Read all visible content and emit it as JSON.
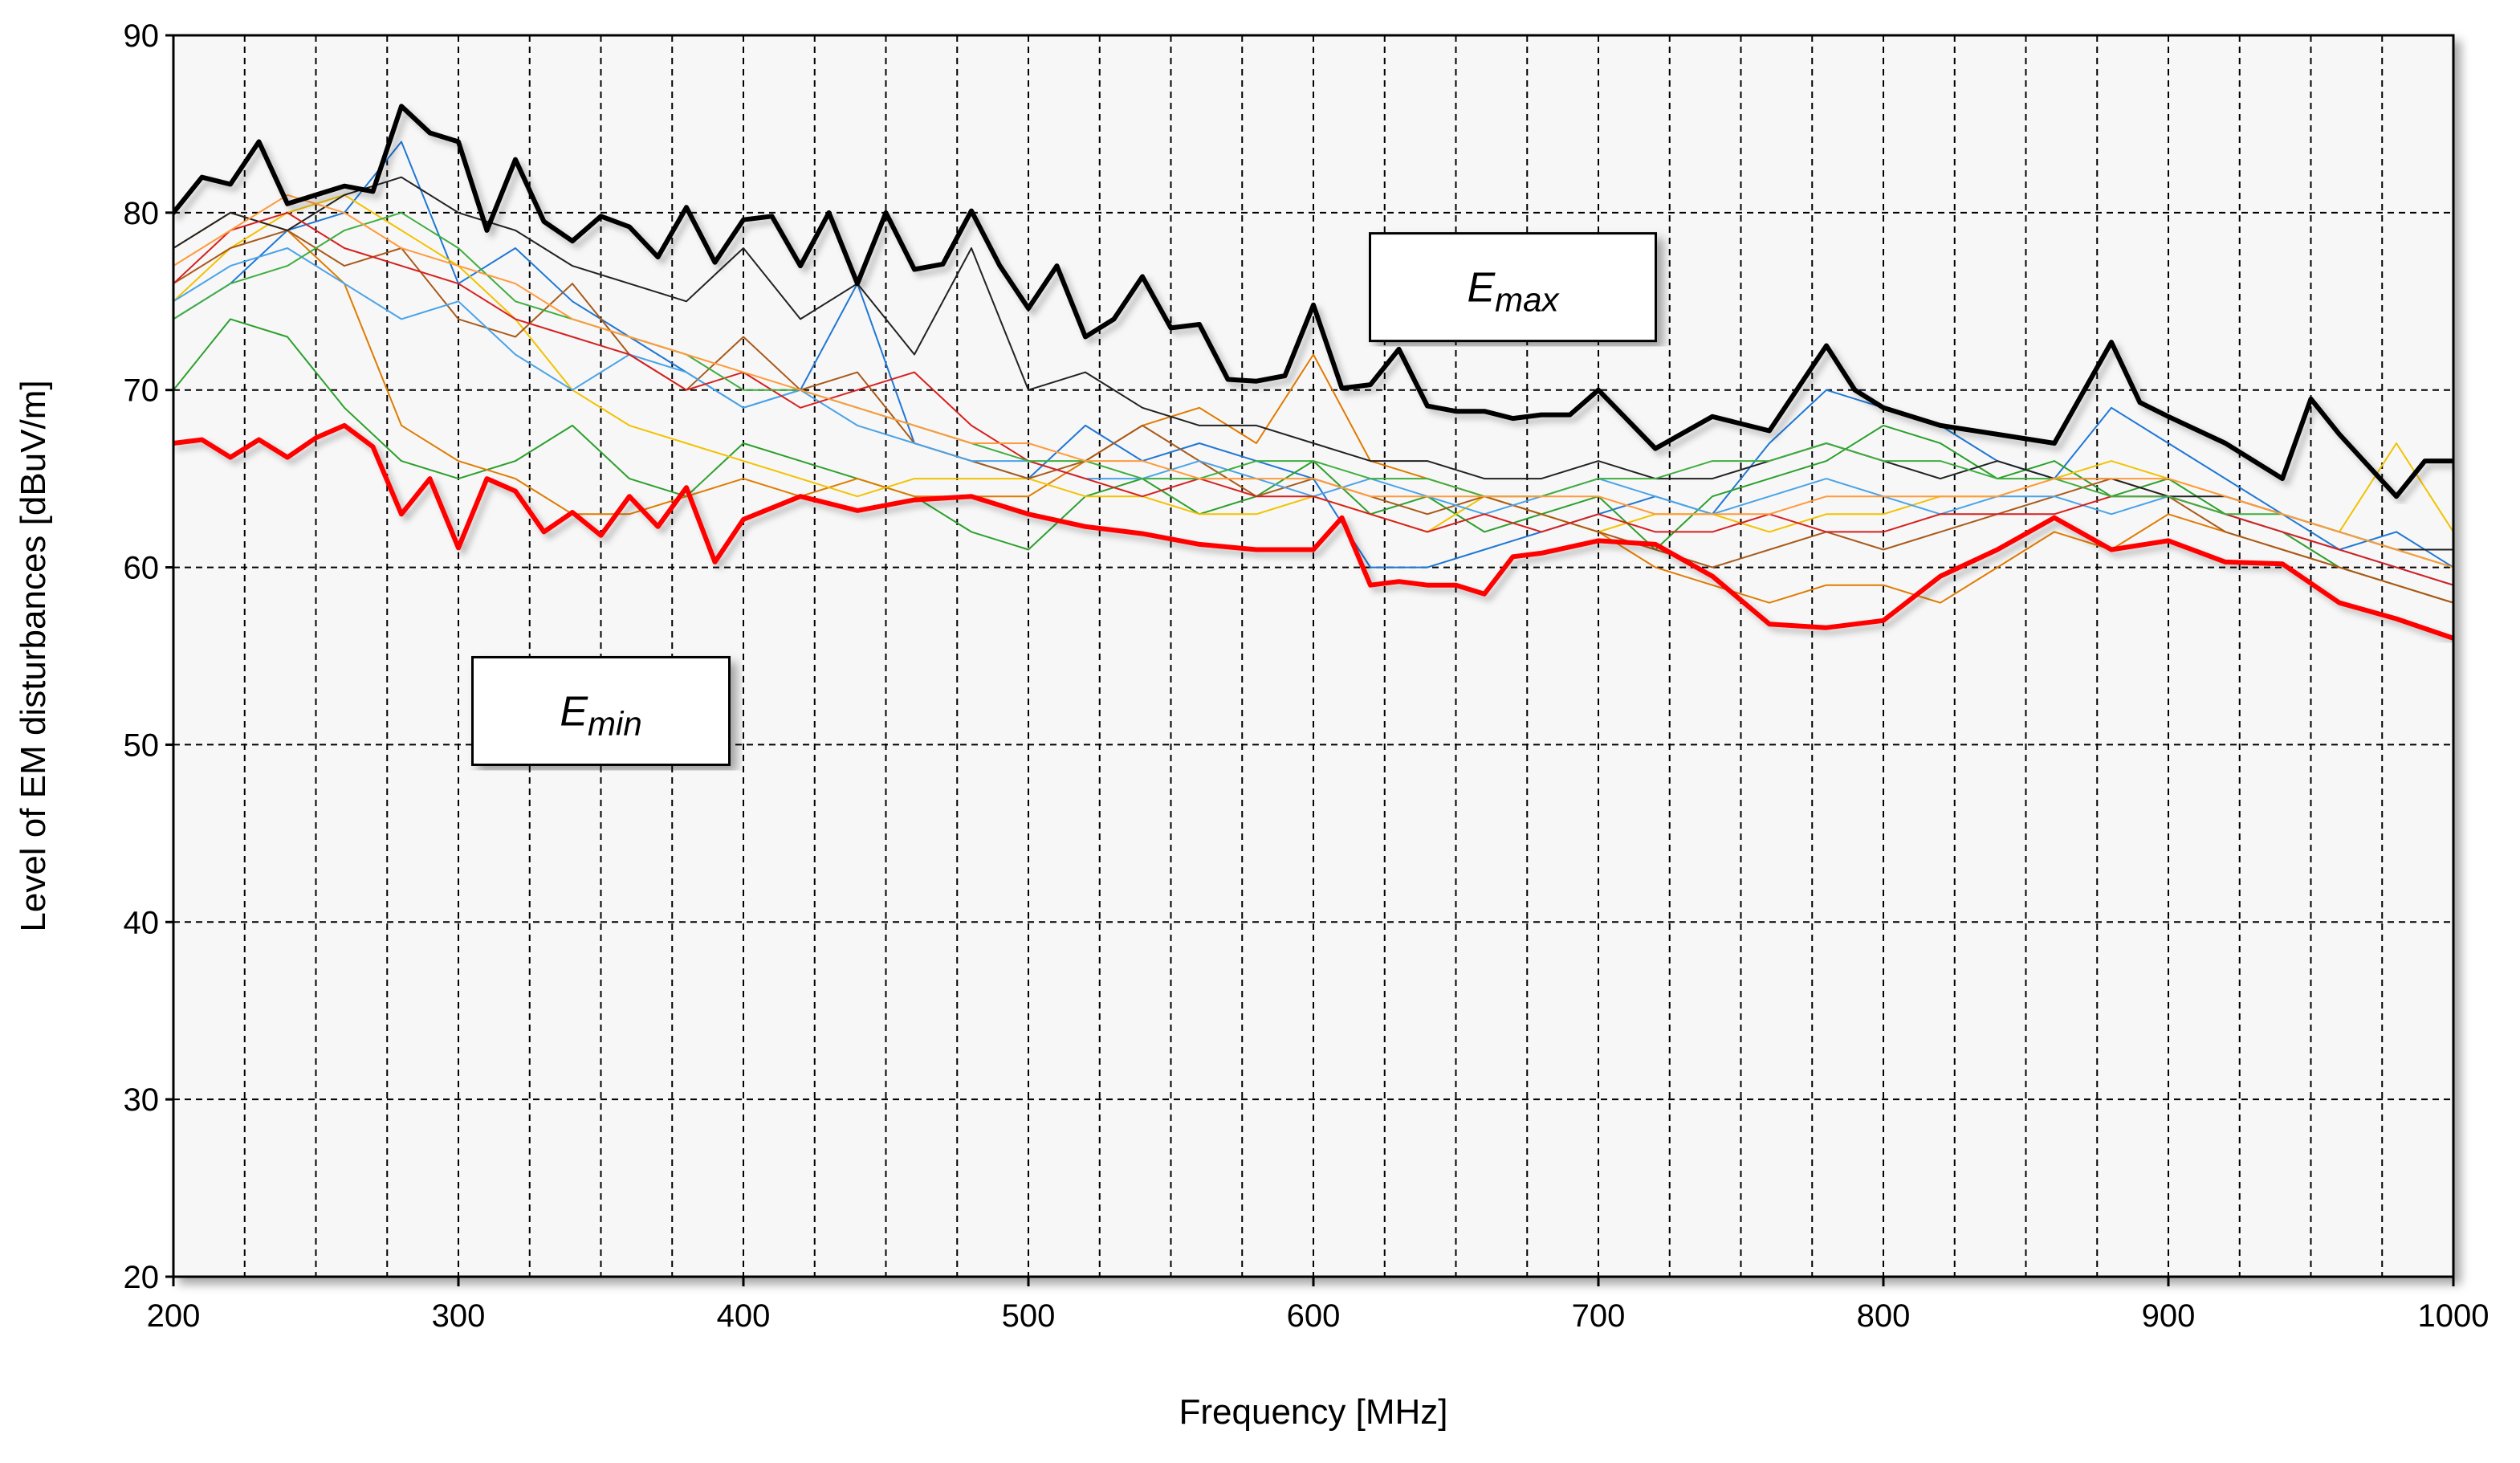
{
  "chart_data": {
    "type": "line",
    "title": "",
    "xlabel": "Frequency [MHz]",
    "ylabel": "Level of EM disturbances [dBuV/m]",
    "xlim": [
      200,
      1000
    ],
    "ylim": [
      20,
      90
    ],
    "x_ticks": [
      200,
      300,
      400,
      500,
      600,
      700,
      800,
      900,
      1000
    ],
    "y_ticks": [
      20,
      30,
      40,
      50,
      60,
      70,
      80,
      90
    ],
    "x_minor_step": 25,
    "grid": true,
    "legend": "none",
    "annotations": [
      {
        "label": "E",
        "sub": "max",
        "x": 670,
        "y": 75.8
      },
      {
        "label": "E",
        "sub": "min",
        "x": 350,
        "y": 51.9
      }
    ],
    "series": [
      {
        "color": "#000000",
        "role": "E_max envelope",
        "width": 6,
        "x": [
          200,
          210,
          220,
          230,
          240,
          250,
          260,
          270,
          280,
          290,
          300,
          310,
          320,
          330,
          340,
          350,
          360,
          370,
          380,
          390,
          400,
          410,
          420,
          430,
          440,
          450,
          460,
          470,
          480,
          490,
          500,
          510,
          520,
          530,
          540,
          550,
          560,
          570,
          580,
          590,
          600,
          610,
          620,
          630,
          640,
          650,
          660,
          670,
          680,
          690,
          700,
          720,
          740,
          760,
          780,
          790,
          800,
          820,
          840,
          860,
          880,
          890,
          900,
          920,
          940,
          950,
          960,
          980,
          990,
          1000
        ],
        "y": [
          80,
          82,
          81.6,
          84,
          80.5,
          81,
          81.5,
          81.2,
          86,
          84.5,
          84,
          79,
          83,
          79.5,
          78.4,
          79.8,
          79.2,
          77.5,
          80.3,
          77.2,
          79.6,
          79.8,
          77,
          80,
          76,
          80,
          76.8,
          77.1,
          80.1,
          77,
          74.6,
          77,
          73,
          74,
          76.4,
          73.5,
          73.7,
          70.6,
          70.5,
          70.8,
          74.8,
          70.1,
          70.3,
          72.3,
          69.1,
          68.8,
          68.8,
          68.4,
          68.6,
          68.6,
          70,
          66.7,
          68.5,
          67.7,
          72.5,
          70,
          69,
          68,
          67.5,
          67,
          72.7,
          69.3,
          68.5,
          67,
          65,
          69.5,
          67.5,
          64,
          66,
          66
        ]
      },
      {
        "color": "#ff0000",
        "role": "E_min envelope",
        "width": 6,
        "x": [
          200,
          210,
          220,
          230,
          240,
          250,
          260,
          270,
          280,
          290,
          300,
          310,
          320,
          330,
          340,
          350,
          360,
          370,
          380,
          390,
          400,
          420,
          440,
          460,
          480,
          500,
          520,
          540,
          560,
          580,
          600,
          610,
          620,
          630,
          640,
          650,
          660,
          670,
          680,
          700,
          720,
          740,
          760,
          780,
          800,
          820,
          840,
          860,
          880,
          900,
          920,
          940,
          960,
          980,
          1000
        ],
        "y": [
          67,
          67.2,
          66.2,
          67.2,
          66.2,
          67.3,
          68,
          66.8,
          63,
          65,
          61.1,
          65,
          64.3,
          62,
          63.1,
          61.8,
          64,
          62.3,
          64.5,
          60.3,
          62.7,
          64,
          63.2,
          63.8,
          64,
          63,
          62.3,
          61.9,
          61.3,
          61,
          61,
          62.8,
          59,
          59.2,
          59,
          59,
          58.5,
          60.6,
          60.8,
          61.5,
          61.3,
          59.5,
          56.8,
          56.6,
          57,
          59.5,
          61,
          62.8,
          61,
          61.5,
          60.3,
          60.2,
          58,
          57.1,
          56
        ]
      },
      {
        "color": "#1f77d4",
        "width": 2,
        "x": [
          200,
          220,
          240,
          260,
          280,
          300,
          320,
          340,
          360,
          380,
          400,
          420,
          440,
          460,
          480,
          500,
          520,
          540,
          560,
          580,
          600,
          620,
          640,
          660,
          680,
          700,
          720,
          740,
          760,
          780,
          800,
          820,
          840,
          860,
          880,
          900,
          920,
          940,
          960,
          980,
          1000
        ],
        "y": [
          74,
          76,
          79,
          80,
          84,
          76,
          78,
          75,
          73,
          71,
          69,
          70,
          76,
          67,
          66,
          65,
          68,
          66,
          67,
          66,
          65,
          60,
          60,
          61,
          62,
          63,
          64,
          63,
          67,
          70,
          69,
          68,
          66,
          65,
          69,
          67,
          65,
          63,
          61,
          62,
          60
        ]
      },
      {
        "color": "#2ca02c",
        "width": 2,
        "x": [
          200,
          220,
          240,
          260,
          280,
          300,
          320,
          340,
          360,
          380,
          400,
          420,
          440,
          460,
          480,
          500,
          520,
          540,
          560,
          580,
          600,
          620,
          640,
          660,
          680,
          700,
          720,
          740,
          760,
          780,
          800,
          820,
          840,
          860,
          880,
          900,
          920,
          940,
          960,
          980,
          1000
        ],
        "y": [
          70,
          74,
          73,
          69,
          66,
          65,
          66,
          68,
          65,
          64,
          67,
          66,
          65,
          64,
          62,
          61,
          64,
          65,
          63,
          64,
          66,
          63,
          64,
          62,
          63,
          64,
          61,
          64,
          65,
          66,
          68,
          67,
          65,
          66,
          64,
          65,
          63,
          62,
          60,
          59,
          58
        ]
      },
      {
        "color": "#e07b00",
        "width": 2,
        "x": [
          200,
          220,
          240,
          260,
          280,
          300,
          320,
          340,
          360,
          380,
          400,
          420,
          440,
          460,
          480,
          500,
          520,
          540,
          560,
          580,
          600,
          620,
          640,
          660,
          680,
          700,
          720,
          740,
          760,
          780,
          800,
          820,
          840,
          860,
          880,
          900,
          920,
          940,
          960,
          980,
          1000
        ],
        "y": [
          78,
          80,
          79,
          76,
          68,
          66,
          65,
          63,
          63,
          64,
          65,
          64,
          65,
          64,
          64,
          64,
          66,
          68,
          69,
          67,
          72,
          66,
          65,
          64,
          63,
          62,
          60,
          59,
          58,
          59,
          59,
          58,
          60,
          62,
          61,
          63,
          62,
          61,
          60,
          59,
          58
        ]
      },
      {
        "color": "#f2c200",
        "width": 2,
        "x": [
          200,
          220,
          240,
          260,
          280,
          300,
          320,
          340,
          360,
          380,
          400,
          420,
          440,
          460,
          480,
          500,
          520,
          540,
          560,
          580,
          600,
          620,
          640,
          660,
          680,
          700,
          720,
          740,
          760,
          780,
          800,
          820,
          840,
          860,
          880,
          900,
          920,
          940,
          960,
          980,
          1000
        ],
        "y": [
          75,
          78,
          80,
          81,
          79,
          77,
          74,
          70,
          68,
          67,
          66,
          65,
          64,
          65,
          65,
          65,
          64,
          64,
          63,
          63,
          64,
          63,
          62,
          64,
          63,
          62,
          63,
          63,
          62,
          63,
          63,
          64,
          64,
          65,
          66,
          65,
          64,
          63,
          62,
          67,
          62
        ]
      },
      {
        "color": "#a85a1a",
        "width": 2,
        "x": [
          200,
          220,
          240,
          260,
          280,
          300,
          320,
          340,
          360,
          380,
          400,
          420,
          440,
          460,
          480,
          500,
          520,
          540,
          560,
          580,
          600,
          620,
          640,
          660,
          680,
          700,
          720,
          740,
          760,
          780,
          800,
          820,
          840,
          860,
          880,
          900,
          920,
          940,
          960,
          980,
          1000
        ],
        "y": [
          76,
          78,
          79,
          77,
          78,
          74,
          73,
          76,
          72,
          70,
          73,
          70,
          71,
          67,
          66,
          65,
          66,
          68,
          66,
          64,
          65,
          64,
          63,
          64,
          63,
          62,
          61,
          60,
          61,
          62,
          61,
          62,
          63,
          64,
          65,
          64,
          62,
          61,
          60,
          59,
          58
        ]
      },
      {
        "color": "#4aa3e8",
        "width": 2,
        "x": [
          200,
          220,
          240,
          260,
          280,
          300,
          320,
          340,
          360,
          380,
          400,
          420,
          440,
          460,
          480,
          500,
          520,
          540,
          560,
          580,
          600,
          620,
          640,
          660,
          680,
          700,
          720,
          740,
          760,
          780,
          800,
          820,
          840,
          860,
          880,
          900,
          920,
          940,
          960,
          980,
          1000
        ],
        "y": [
          75,
          77,
          78,
          76,
          74,
          75,
          72,
          70,
          72,
          71,
          69,
          70,
          68,
          67,
          66,
          66,
          65,
          65,
          66,
          65,
          64,
          65,
          64,
          63,
          64,
          65,
          64,
          63,
          64,
          65,
          64,
          63,
          64,
          64,
          63,
          64,
          63,
          62,
          61,
          60,
          59
        ]
      },
      {
        "color": "#222222",
        "width": 2,
        "x": [
          200,
          220,
          240,
          260,
          280,
          300,
          320,
          340,
          360,
          380,
          400,
          420,
          440,
          460,
          480,
          500,
          520,
          540,
          560,
          580,
          600,
          620,
          640,
          660,
          680,
          700,
          720,
          740,
          760,
          780,
          800,
          820,
          840,
          860,
          880,
          900,
          920,
          940,
          960,
          980,
          1000
        ],
        "y": [
          78,
          80,
          79,
          81,
          82,
          80,
          79,
          77,
          76,
          75,
          78,
          74,
          76,
          72,
          78,
          70,
          71,
          69,
          68,
          68,
          67,
          66,
          66,
          65,
          65,
          66,
          65,
          65,
          66,
          67,
          66,
          65,
          66,
          65,
          65,
          64,
          64,
          63,
          62,
          61,
          61
        ]
      },
      {
        "color": "#d62020",
        "width": 2,
        "x": [
          200,
          220,
          240,
          260,
          280,
          300,
          320,
          340,
          360,
          380,
          400,
          420,
          440,
          460,
          480,
          500,
          520,
          540,
          560,
          580,
          600,
          620,
          640,
          660,
          680,
          700,
          720,
          740,
          760,
          780,
          800,
          820,
          840,
          860,
          880,
          900,
          920,
          940,
          960,
          980,
          1000
        ],
        "y": [
          76,
          79,
          80,
          78,
          77,
          76,
          74,
          73,
          72,
          70,
          71,
          69,
          70,
          71,
          68,
          66,
          65,
          64,
          65,
          64,
          64,
          63,
          62,
          63,
          62,
          63,
          62,
          62,
          63,
          62,
          62,
          63,
          63,
          63,
          64,
          64,
          63,
          62,
          61,
          60,
          59
        ]
      },
      {
        "color": "#3fae3f",
        "width": 2,
        "x": [
          200,
          220,
          240,
          260,
          280,
          300,
          320,
          340,
          360,
          380,
          400,
          420,
          440,
          460,
          480,
          500,
          520,
          540,
          560,
          580,
          600,
          620,
          640,
          660,
          680,
          700,
          720,
          740,
          760,
          780,
          800,
          820,
          840,
          860,
          880,
          900,
          920,
          940,
          960,
          980,
          1000
        ],
        "y": [
          74,
          76,
          77,
          79,
          80,
          78,
          75,
          74,
          73,
          72,
          70,
          70,
          69,
          68,
          67,
          66,
          66,
          65,
          65,
          66,
          66,
          65,
          65,
          64,
          64,
          65,
          65,
          66,
          66,
          67,
          66,
          66,
          65,
          65,
          64,
          64,
          63,
          63,
          62,
          61,
          60
        ]
      },
      {
        "color": "#ff9a3c",
        "width": 2,
        "x": [
          200,
          220,
          240,
          260,
          280,
          300,
          320,
          340,
          360,
          380,
          400,
          420,
          440,
          460,
          480,
          500,
          520,
          540,
          560,
          580,
          600,
          620,
          640,
          660,
          680,
          700,
          720,
          740,
          760,
          780,
          800,
          820,
          840,
          860,
          880,
          900,
          920,
          940,
          960,
          980,
          1000
        ],
        "y": [
          77,
          79,
          81,
          80,
          78,
          77,
          76,
          74,
          73,
          72,
          71,
          70,
          69,
          68,
          67,
          67,
          66,
          66,
          65,
          65,
          65,
          64,
          64,
          64,
          64,
          64,
          63,
          63,
          63,
          64,
          64,
          64,
          64,
          65,
          65,
          65,
          64,
          63,
          62,
          61,
          60
        ]
      }
    ]
  }
}
